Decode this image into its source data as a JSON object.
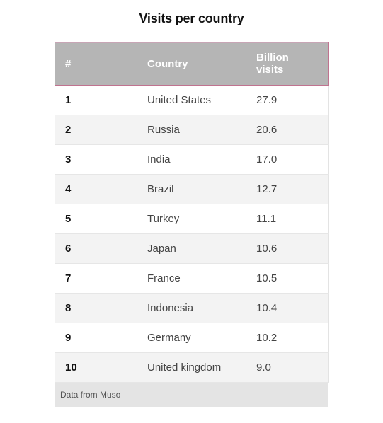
{
  "chart_data": {
    "type": "table",
    "title": "Visits per country",
    "columns": [
      "#",
      "Country",
      "Billion visits"
    ],
    "rows": [
      {
        "rank": "1",
        "country": "United States",
        "visits": "27.9"
      },
      {
        "rank": "2",
        "country": "Russia",
        "visits": "20.6"
      },
      {
        "rank": "3",
        "country": "India",
        "visits": "17.0"
      },
      {
        "rank": "4",
        "country": "Brazil",
        "visits": "12.7"
      },
      {
        "rank": "5",
        "country": "Turkey",
        "visits": "11.1"
      },
      {
        "rank": "6",
        "country": "Japan",
        "visits": "10.6"
      },
      {
        "rank": "7",
        "country": "France",
        "visits": "10.5"
      },
      {
        "rank": "8",
        "country": "Indonesia",
        "visits": "10.4"
      },
      {
        "rank": "9",
        "country": "Germany",
        "visits": "10.2"
      },
      {
        "rank": "10",
        "country": "United kingdom",
        "visits": "9.0"
      }
    ],
    "source": "Data from Muso"
  },
  "colors": {
    "header_bg": "#b5b5b5",
    "header_accent": "#c0738f",
    "row_alt_bg": "#f3f3f3",
    "source_bg": "#e4e4e4"
  }
}
